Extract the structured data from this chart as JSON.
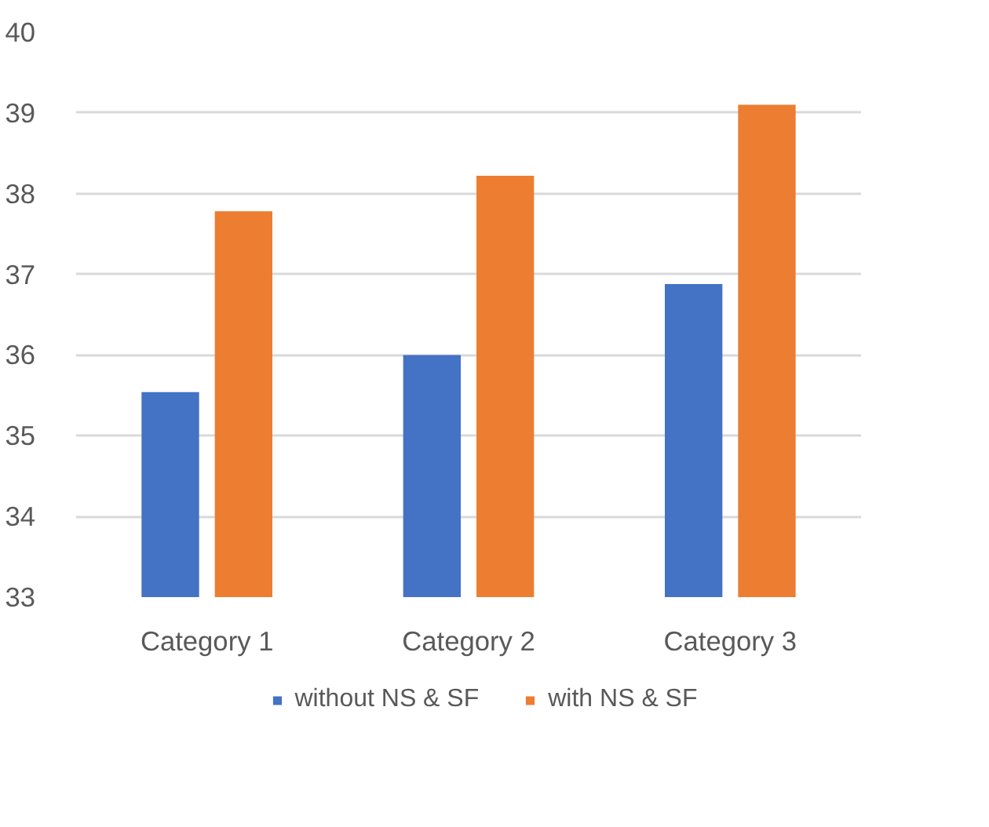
{
  "chart_data": {
    "type": "bar",
    "categories": [
      "Category 1",
      "Category 2",
      "Category 3"
    ],
    "series": [
      {
        "name": "without NS & SF",
        "color": "#4472c4",
        "values": [
          35.54,
          36.0,
          36.88
        ]
      },
      {
        "name": "with NS & SF",
        "color": "#ed7d31",
        "values": [
          37.78,
          38.22,
          39.1
        ]
      }
    ],
    "ylim": [
      33,
      40
    ],
    "yticks": [
      33,
      34,
      35,
      36,
      37,
      38,
      39,
      40
    ],
    "grid": "y",
    "legend": "bottom"
  }
}
